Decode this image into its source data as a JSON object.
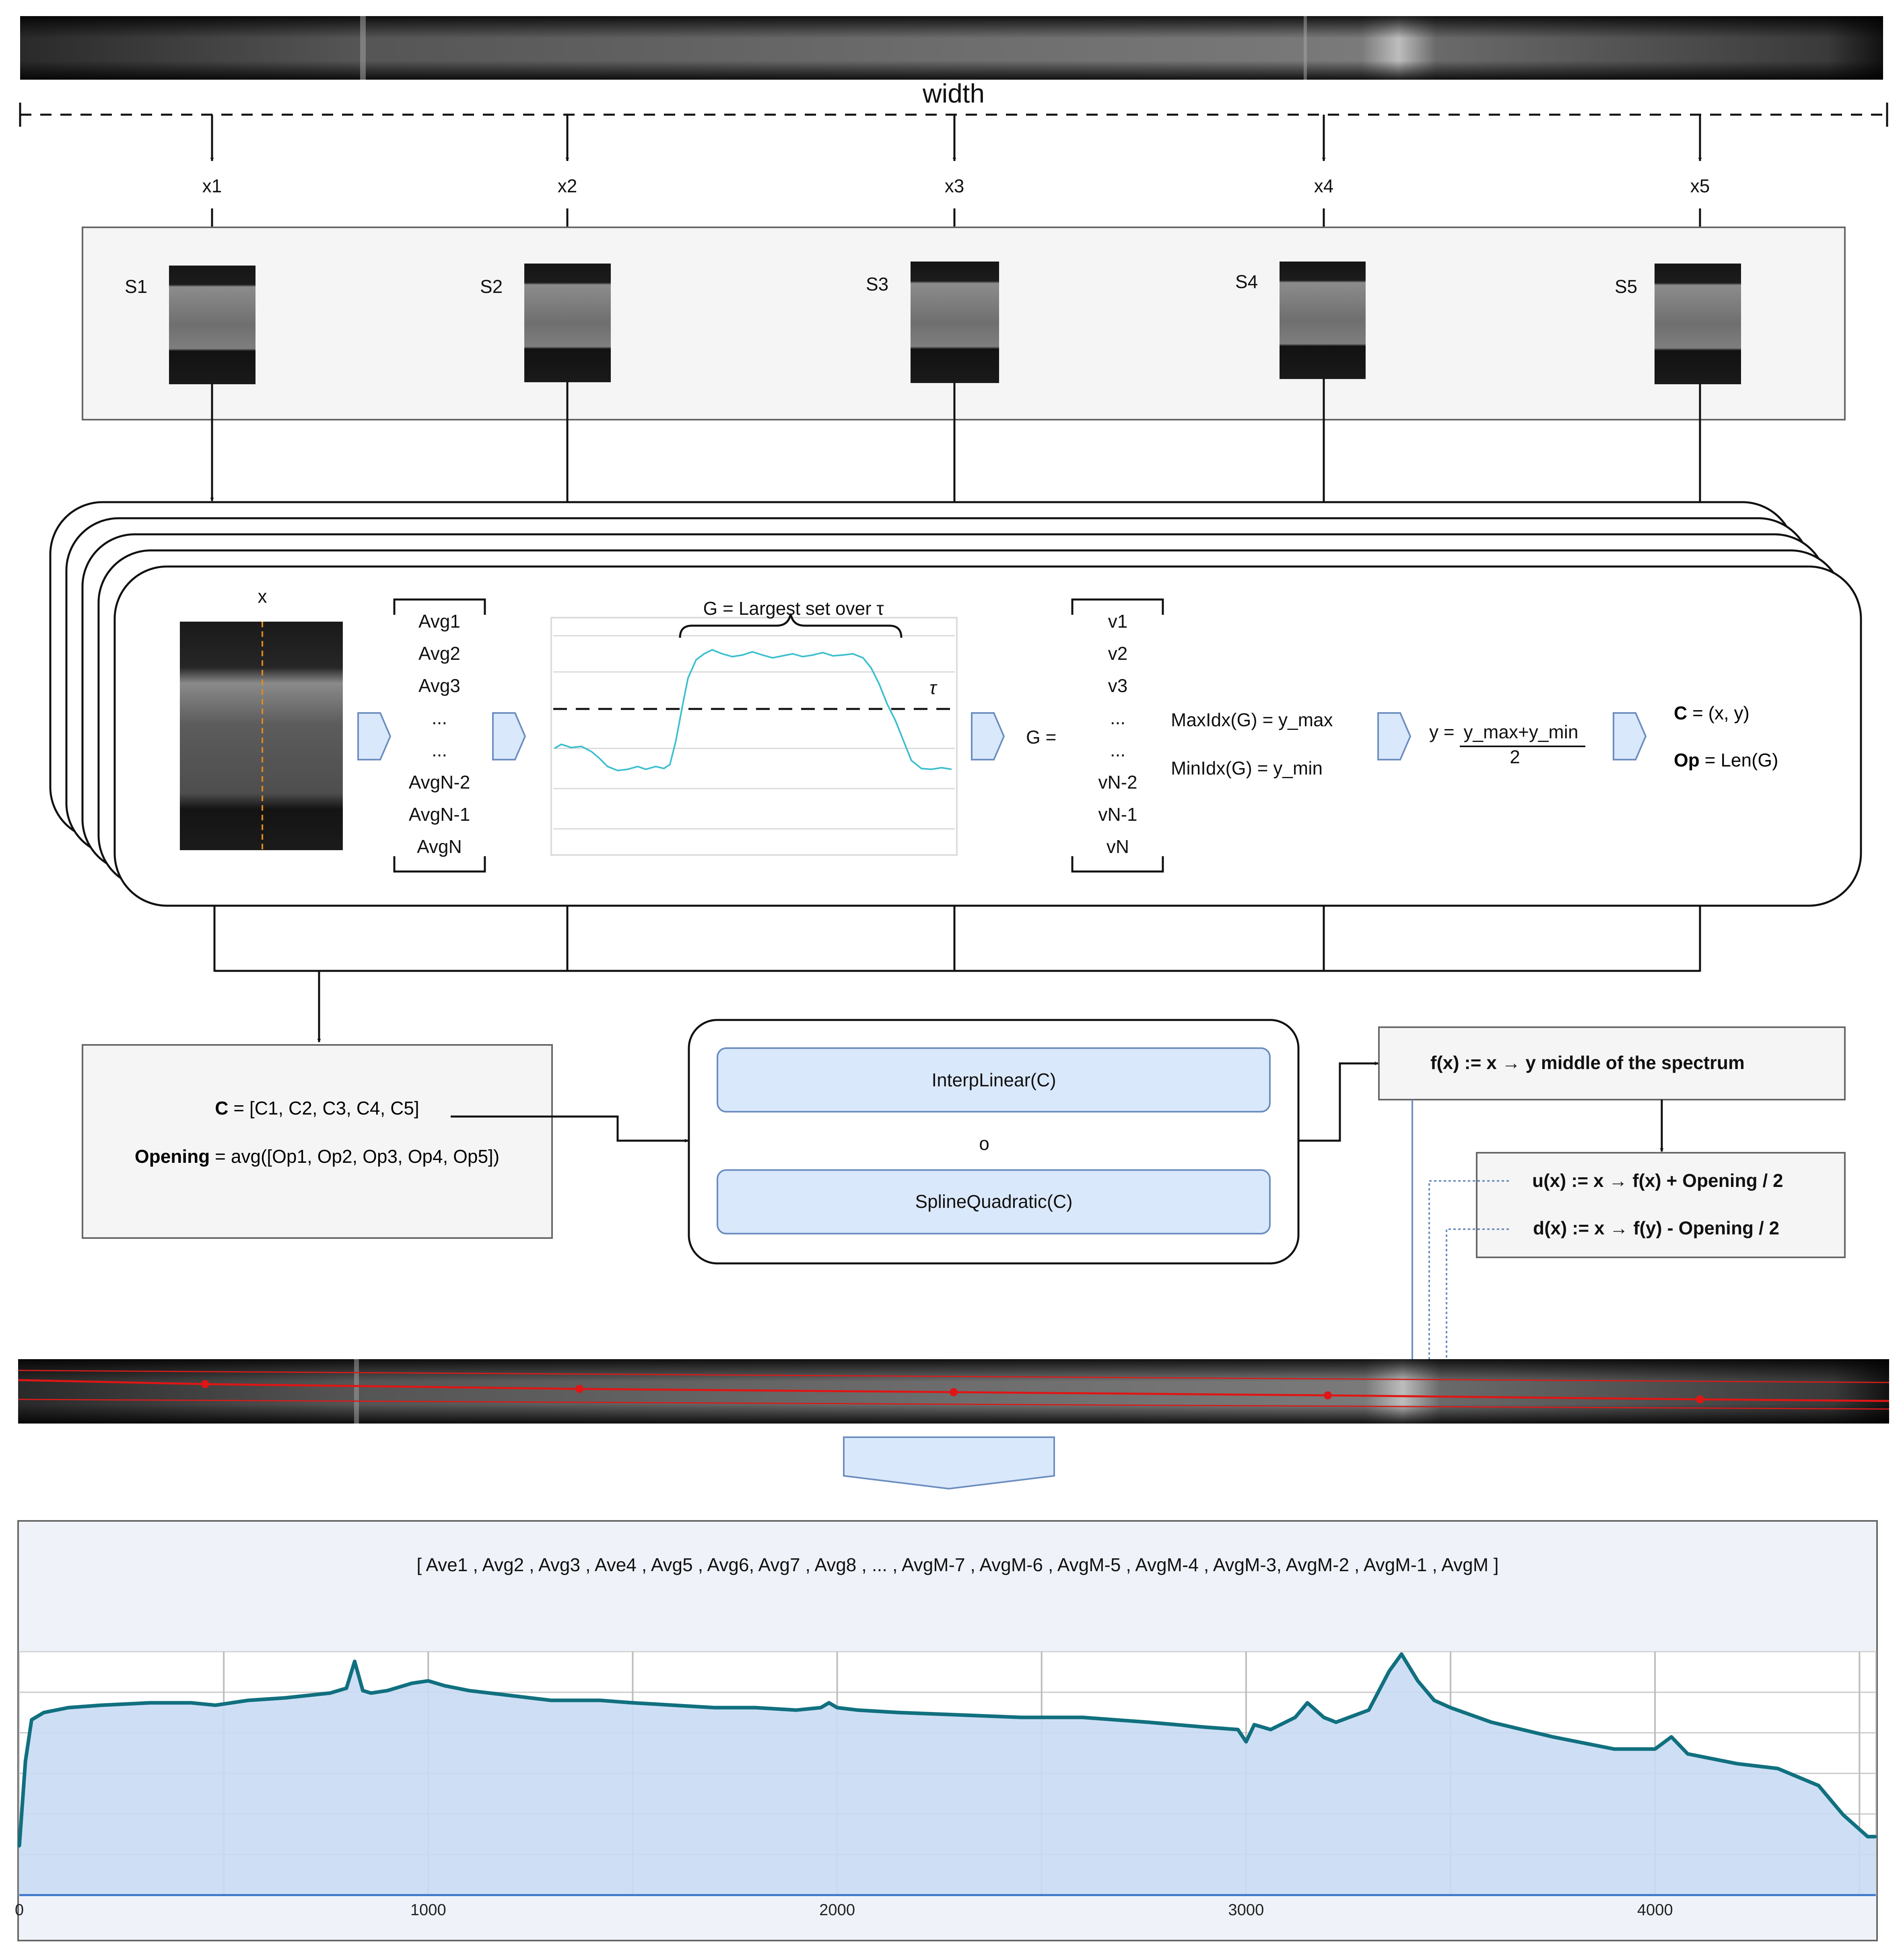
{
  "top": {
    "width_label": "width"
  },
  "samples": {
    "x_labels": [
      "x1",
      "x2",
      "x3",
      "x4",
      "x5"
    ],
    "s_labels": [
      "S1",
      "S2",
      "S3",
      "S4",
      "S5"
    ]
  },
  "stage": {
    "x_label": "x",
    "avg_list": [
      "Avg1",
      "Avg2",
      "Avg3",
      "...",
      "...",
      "AvgN-2",
      "AvgN-1",
      "AvgN"
    ],
    "g_title": "G = Largest set over τ",
    "tau": "τ",
    "g_eq": "G =",
    "v_list": [
      "v1",
      "v2",
      "v3",
      "...",
      "...",
      "vN-2",
      "vN-1",
      "vN"
    ],
    "maxidx": "MaxIdx(G) = y_max",
    "minidx": "MinIdx(G) = y_min",
    "y_eq_lhs": "y =",
    "y_eq_num": "y_max+y_min",
    "y_eq_den": "2",
    "c_label": "C",
    "c_value": " = (x, y)",
    "op_label": "Op",
    "op_value": " = Len(G)"
  },
  "collect": {
    "c_label": "C",
    "c_value": " = [C1, C2, C3, C4, C5]",
    "opening_label": "Opening",
    "opening_value": " = avg([Op1, Op2, Op3, Op4, Op5])"
  },
  "interp": {
    "linear": "InterpLinear(C)",
    "or": "o",
    "spline": "SplineQuadratic(C)"
  },
  "funcs": {
    "f": "f(x) := x → y middle of the spectrum",
    "u": "u(x) := x → f(x) + Opening / 2",
    "d": "d(x) := x → f(y) - Opening / 2"
  },
  "result": {
    "avg_sequence": "[  Ave1 , Avg2 , Avg3 , Ave4 , Avg5 , Avg6, Avg7 , Avg8 , ... , AvgM-7 , AvgM-6 , AvgM-5 , AvgM-4 , AvgM-3, AvgM-2 , AvgM-1 , AvgM ]"
  },
  "chart_data": {
    "type": "area",
    "title": "",
    "xlabel": "",
    "ylabel": "",
    "xlim": [
      0,
      4540
    ],
    "ylim": [
      0,
      1
    ],
    "x_ticks": [
      "0",
      "1000",
      "2000",
      "3000",
      "4000"
    ],
    "series": [
      {
        "color": "#11707f",
        "fill": "#c9dcf4",
        "x": [
          0,
          15,
          30,
          60,
          120,
          200,
          320,
          420,
          480,
          560,
          650,
          760,
          800,
          820,
          840,
          860,
          900,
          960,
          1000,
          1040,
          1100,
          1200,
          1300,
          1420,
          1500,
          1600,
          1700,
          1800,
          1900,
          1960,
          1980,
          2000,
          2050,
          2150,
          2300,
          2450,
          2600,
          2760,
          2900,
          2980,
          3000,
          3020,
          3060,
          3120,
          3150,
          3190,
          3220,
          3300,
          3350,
          3380,
          3420,
          3460,
          3500,
          3600,
          3750,
          3900,
          4000,
          4040,
          4080,
          4200,
          4300,
          4400,
          4460,
          4520,
          4540
        ],
        "y": [
          0.2,
          0.55,
          0.72,
          0.75,
          0.77,
          0.78,
          0.79,
          0.79,
          0.78,
          0.8,
          0.81,
          0.83,
          0.85,
          0.96,
          0.84,
          0.83,
          0.84,
          0.87,
          0.88,
          0.86,
          0.84,
          0.82,
          0.8,
          0.8,
          0.79,
          0.78,
          0.77,
          0.77,
          0.76,
          0.77,
          0.79,
          0.77,
          0.76,
          0.75,
          0.74,
          0.73,
          0.73,
          0.71,
          0.69,
          0.68,
          0.63,
          0.7,
          0.68,
          0.73,
          0.79,
          0.73,
          0.71,
          0.76,
          0.92,
          0.99,
          0.88,
          0.8,
          0.77,
          0.71,
          0.65,
          0.6,
          0.6,
          0.65,
          0.58,
          0.54,
          0.52,
          0.45,
          0.33,
          0.24,
          0.24
        ]
      }
    ]
  }
}
